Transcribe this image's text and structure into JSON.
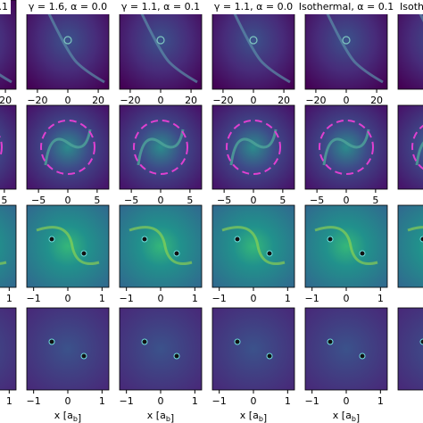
{
  "chart_data": {
    "type": "image-grid",
    "titles": [
      ".1",
      "γ = 1.6, α = 0.0",
      "γ = 1.1, α = 0.1",
      "γ = 1.1, α = 0.0",
      "Isothermal, α = 0.1",
      "Isothe"
    ],
    "rows": [
      {
        "xlim": [
          -27,
          27
        ],
        "xticks": [
          {
            "value": -20,
            "label": "−20"
          },
          0,
          20
        ]
      },
      {
        "xlim": [
          -7,
          7
        ],
        "xticks": [
          {
            "value": -5,
            "label": "−5"
          },
          0,
          5
        ]
      },
      {
        "xlim": [
          -1.2,
          1.2
        ],
        "xticks": [
          {
            "value": -1,
            "label": "−1"
          },
          0,
          1
        ]
      },
      {
        "xlim": [
          -1.2,
          1.2
        ],
        "xticks": [
          {
            "value": -1,
            "label": "−1"
          },
          0,
          1
        ]
      }
    ],
    "xlabel": "x [a<sub>b</sub>]"
  }
}
